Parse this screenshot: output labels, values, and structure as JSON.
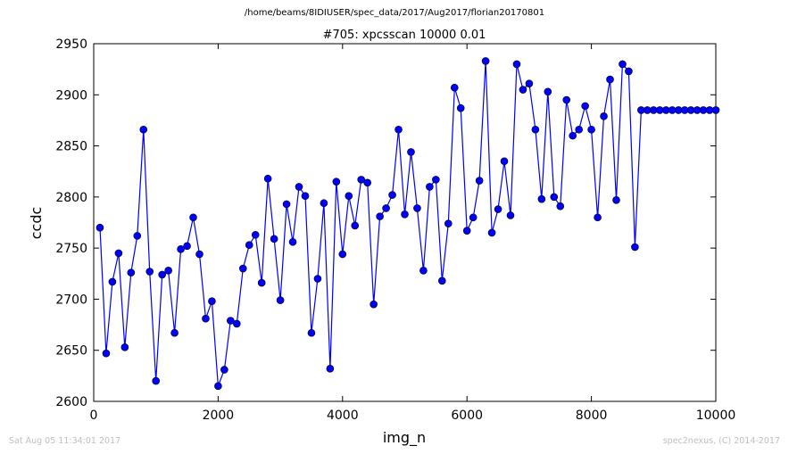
{
  "header": {
    "file_path": "/home/beams/8IDIUSER/spec_data/2017/Aug2017/florian20170801"
  },
  "footer": {
    "timestamp": "Sat Aug 05 11:34:01 2017",
    "credit": "spec2nexus, (C) 2014-2017"
  },
  "chart_data": {
    "type": "line",
    "title": "#705: xpcsscan 10000 0.01",
    "xlabel": "img_n",
    "ylabel": "ccdc",
    "xlim": [
      0,
      10000
    ],
    "ylim": [
      2600,
      2950
    ],
    "xticks": [
      0,
      2000,
      4000,
      6000,
      8000,
      10000
    ],
    "yticks": [
      2600,
      2650,
      2700,
      2750,
      2800,
      2850,
      2900,
      2950
    ],
    "grid": false,
    "legend": "none",
    "line_color": "#0000ff",
    "marker": "circle",
    "series": [
      {
        "x": [
          100,
          200,
          300,
          400,
          500,
          600,
          700,
          800,
          900,
          1000,
          1100,
          1200,
          1300,
          1400,
          1500,
          1600,
          1700,
          1800,
          1900,
          2000,
          2100,
          2200,
          2300,
          2400,
          2500,
          2600,
          2700,
          2800,
          2900,
          3000,
          3100,
          3200,
          3300,
          3400,
          3500,
          3600,
          3700,
          3800,
          3900,
          4000,
          4100,
          4200,
          4300,
          4400,
          4500,
          4600,
          4700,
          4800,
          4900,
          5000,
          5100,
          5200,
          5300,
          5400,
          5500,
          5600,
          5700,
          5800,
          5900,
          6000,
          6100,
          6200,
          6300,
          6400,
          6500,
          6600,
          6700,
          6800,
          6900,
          7000,
          7100,
          7200,
          7300,
          7400,
          7500,
          7600,
          7700,
          7800,
          7900,
          8000,
          8100,
          8200,
          8300,
          8400,
          8500,
          8600,
          8700,
          8800,
          8900,
          9000,
          9100,
          9200,
          9300,
          9400,
          9500,
          9600,
          9700,
          9800,
          9900,
          10000
        ],
        "y": [
          2770,
          2647,
          2717,
          2745,
          2653,
          2726,
          2762,
          2866,
          2727,
          2620,
          2724,
          2728,
          2667,
          2749,
          2752,
          2780,
          2744,
          2681,
          2698,
          2615,
          2631,
          2679,
          2676,
          2730,
          2753,
          2763,
          2716,
          2818,
          2759,
          2699,
          2793,
          2756,
          2810,
          2801,
          2667,
          2720,
          2794,
          2632,
          2815,
          2744,
          2801,
          2772,
          2817,
          2814,
          2695,
          2781,
          2789,
          2802,
          2866,
          2783,
          2844,
          2789,
          2728,
          2810,
          2817,
          2718,
          2774,
          2907,
          2887,
          2767,
          2780,
          2816,
          2933,
          2765,
          2788,
          2835,
          2782,
          2930,
          2905,
          2911,
          2866,
          2798,
          2903,
          2800,
          2791,
          2895,
          2860,
          2866,
          2889,
          2866,
          2780,
          2879,
          2915,
          2797,
          2930,
          2923,
          2751,
          2885,
          2885,
          2885,
          2885,
          2885,
          2885,
          2885,
          2885,
          2885,
          2885,
          2885,
          2885,
          2885
        ]
      }
    ]
  }
}
